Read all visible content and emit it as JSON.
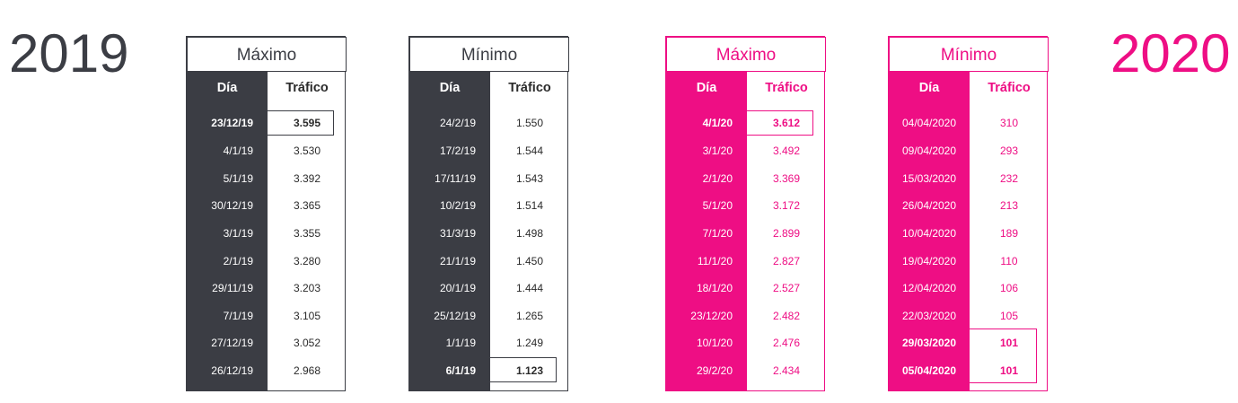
{
  "years": {
    "left": "2019",
    "right": "2020"
  },
  "colors": {
    "dark": "#3b3d44",
    "accent": "#ee0e84"
  },
  "headers": {
    "dia": "Día",
    "trafico": "Tráfico"
  },
  "tables": [
    {
      "title": "Máximo",
      "rows": [
        {
          "dia": "23/12/19",
          "trafico": "3.595"
        },
        {
          "dia": "4/1/19",
          "trafico": "3.530"
        },
        {
          "dia": "5/1/19",
          "trafico": "3.392"
        },
        {
          "dia": "30/12/19",
          "trafico": "3.365"
        },
        {
          "dia": "3/1/19",
          "trafico": "3.355"
        },
        {
          "dia": "2/1/19",
          "trafico": "3.280"
        },
        {
          "dia": "29/11/19",
          "trafico": "3.203"
        },
        {
          "dia": "7/1/19",
          "trafico": "3.105"
        },
        {
          "dia": "27/12/19",
          "trafico": "3.052"
        },
        {
          "dia": "26/12/19",
          "trafico": "2.968"
        }
      ]
    },
    {
      "title": "Mínimo",
      "rows": [
        {
          "dia": "24/2/19",
          "trafico": "1.550"
        },
        {
          "dia": "17/2/19",
          "trafico": "1.544"
        },
        {
          "dia": "17/11/19",
          "trafico": "1.543"
        },
        {
          "dia": "10/2/19",
          "trafico": "1.514"
        },
        {
          "dia": "31/3/19",
          "trafico": "1.498"
        },
        {
          "dia": "21/1/19",
          "trafico": "1.450"
        },
        {
          "dia": "20/1/19",
          "trafico": "1.444"
        },
        {
          "dia": "25/12/19",
          "trafico": "1.265"
        },
        {
          "dia": "1/1/19",
          "trafico": "1.249"
        },
        {
          "dia": "6/1/19",
          "trafico": "1.123"
        }
      ]
    },
    {
      "title": "Máximo",
      "rows": [
        {
          "dia": "4/1/20",
          "trafico": "3.612"
        },
        {
          "dia": "3/1/20",
          "trafico": "3.492"
        },
        {
          "dia": "2/1/20",
          "trafico": "3.369"
        },
        {
          "dia": "5/1/20",
          "trafico": "3.172"
        },
        {
          "dia": "7/1/20",
          "trafico": "2.899"
        },
        {
          "dia": "11/1/20",
          "trafico": "2.827"
        },
        {
          "dia": "18/1/20",
          "trafico": "2.527"
        },
        {
          "dia": "23/12/20",
          "trafico": "2.482"
        },
        {
          "dia": "10/1/20",
          "trafico": "2.476"
        },
        {
          "dia": "29/2/20",
          "trafico": "2.434"
        }
      ]
    },
    {
      "title": "Mínimo",
      "rows": [
        {
          "dia": "04/04/2020",
          "trafico": "310"
        },
        {
          "dia": "09/04/2020",
          "trafico": "293"
        },
        {
          "dia": "15/03/2020",
          "trafico": "232"
        },
        {
          "dia": "26/04/2020",
          "trafico": "213"
        },
        {
          "dia": "10/04/2020",
          "trafico": "189"
        },
        {
          "dia": "19/04/2020",
          "trafico": "110"
        },
        {
          "dia": "12/04/2020",
          "trafico": "106"
        },
        {
          "dia": "22/03/2020",
          "trafico": "105"
        },
        {
          "dia": "29/03/2020",
          "trafico": "101"
        },
        {
          "dia": "05/04/2020",
          "trafico": "101"
        }
      ]
    }
  ]
}
